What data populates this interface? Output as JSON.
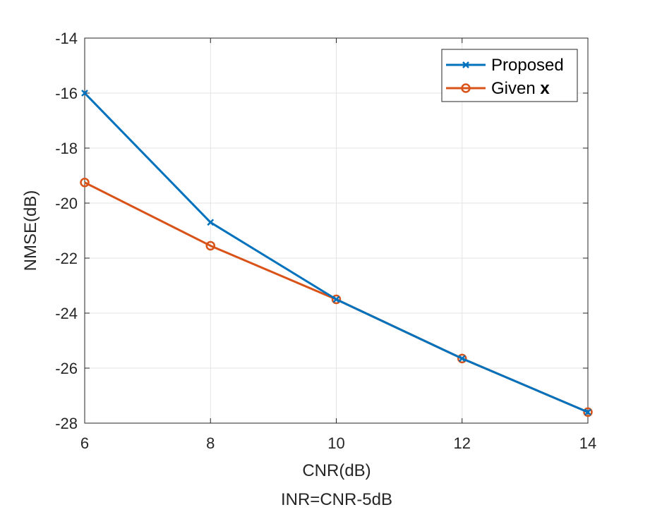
{
  "chart_data": {
    "type": "line",
    "x": [
      6,
      8,
      10,
      12,
      14
    ],
    "series": [
      {
        "name": "Proposed",
        "marker": "x",
        "color": "#0072BD",
        "values": [
          -16.0,
          -20.7,
          -23.5,
          -25.65,
          -27.6
        ]
      },
      {
        "name": "Given ",
        "name_bold_suffix": "x",
        "marker": "o",
        "color": "#D95319",
        "values": [
          -19.25,
          -21.55,
          -23.5,
          -25.65,
          -27.6
        ]
      }
    ],
    "xlabel": "CNR(dB)",
    "xlabel_line2": "INR=CNR-5dB",
    "ylabel": "NMSE(dB)",
    "xlim": [
      6,
      14
    ],
    "ylim": [
      -28,
      -14
    ],
    "xticks": [
      6,
      8,
      10,
      12,
      14
    ],
    "yticks": [
      -28,
      -26,
      -24,
      -22,
      -20,
      -18,
      -16,
      -14
    ],
    "grid": true,
    "legend_position": "top-right"
  }
}
